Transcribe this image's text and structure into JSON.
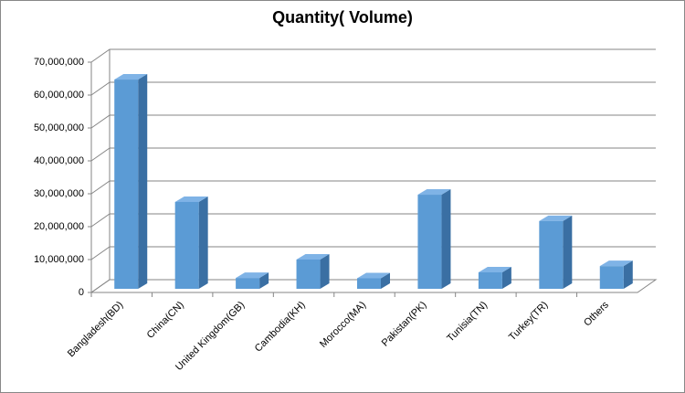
{
  "chart_data": {
    "type": "bar3d",
    "title": "Quantity( Volume)",
    "categories": [
      "Bangladesh(BD)",
      "China(CN)",
      "United Kingdom(GB)",
      "Cambodia(KH)",
      "Morocco(MA)",
      "Pakistan(PK)",
      "Tunisia(TN)",
      "Turkey(TR)",
      "Others"
    ],
    "values": [
      63600000,
      26400000,
      3300000,
      8900000,
      3200000,
      28600000,
      5000000,
      20600000,
      6900000
    ],
    "color": "#5b9bd5",
    "ylim": [
      0,
      70000000
    ],
    "yticks": [
      0,
      {
        "value": 10000000,
        "label": "10,000,000"
      },
      {
        "value": 20000000,
        "label": "20,000,000"
      },
      {
        "value": 30000000,
        "label": "30,000,000"
      },
      {
        "value": 40000000,
        "label": "40,000,000"
      },
      {
        "value": 50000000,
        "label": "50,000,000"
      },
      {
        "value": 60000000,
        "label": "60,000,000"
      },
      {
        "value": 70000000,
        "label": "70,000,000"
      }
    ],
    "grid": true
  }
}
